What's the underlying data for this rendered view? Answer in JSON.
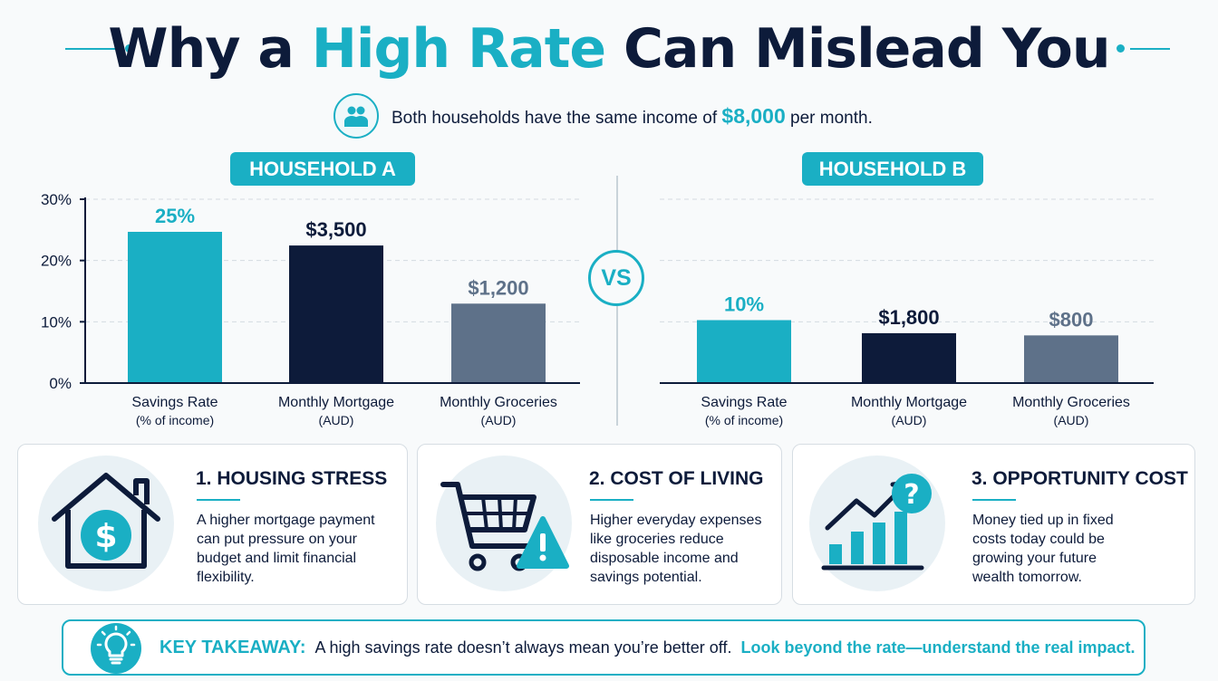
{
  "header": {
    "title_before": "Why a ",
    "title_highlight": "High Rate",
    "title_after": " Can Mislead You",
    "subtitle_before": "Both households have the same income of ",
    "subtitle_amount": "$8,000",
    "subtitle_after": " per month."
  },
  "vs_label": "VS",
  "chart_data": [
    {
      "type": "bar",
      "title": "HOUSEHOLD A",
      "categories": [
        "Savings Rate",
        "Monthly Mortgage",
        "Monthly Groceries"
      ],
      "category_sublabels": [
        "(% of income)",
        "(AUD)",
        "(AUD)"
      ],
      "values": [
        25,
        3500,
        1200
      ],
      "data_labels": [
        "25%",
        "$3,500",
        "$1,200"
      ],
      "colors": [
        "#1aafc4",
        "#0d1b3a",
        "#5e7189"
      ],
      "yticks": [
        "0%",
        "10%",
        "20%",
        "30%"
      ],
      "ylim": [
        0,
        30
      ],
      "grid": true
    },
    {
      "type": "bar",
      "title": "HOUSEHOLD B",
      "categories": [
        "Savings Rate",
        "Monthly Mortgage",
        "Monthly Groceries"
      ],
      "category_sublabels": [
        "(% of income)",
        "(AUD)",
        "(AUD)"
      ],
      "values": [
        10,
        1800,
        800
      ],
      "data_labels": [
        "10%",
        "$1,800",
        "$800"
      ],
      "colors": [
        "#1aafc4",
        "#0d1b3a",
        "#5e7189"
      ],
      "yticks": [],
      "ylim": [
        0,
        30
      ],
      "grid": true
    }
  ],
  "cards": [
    {
      "title": "1.  HOUSING STRESS",
      "body": [
        "A higher mortgage payment",
        "can put pressure on your",
        "budget and limit financial",
        "flexibility."
      ],
      "icon": "house-dollar-icon"
    },
    {
      "title": "2.  COST OF LIVING",
      "body": [
        "Higher everyday expenses",
        "like groceries reduce",
        "disposable income and",
        "savings potential."
      ],
      "icon": "cart-warning-icon"
    },
    {
      "title": "3.  OPPORTUNITY COST",
      "body": [
        "Money tied up in fixed",
        "costs today could be",
        "growing your future",
        "wealth tomorrow."
      ],
      "icon": "growth-chart-question-icon"
    }
  ],
  "takeaway": {
    "label": "KEY TAKEAWAY:",
    "text": "A high savings rate doesn’t always mean you’re better off.",
    "emphasis": "Look beyond the rate—understand the real impact.",
    "icon": "lightbulb-icon"
  },
  "colors": {
    "accent": "#1aafc4",
    "navy": "#0d1b3a",
    "slate": "#5e7189"
  }
}
